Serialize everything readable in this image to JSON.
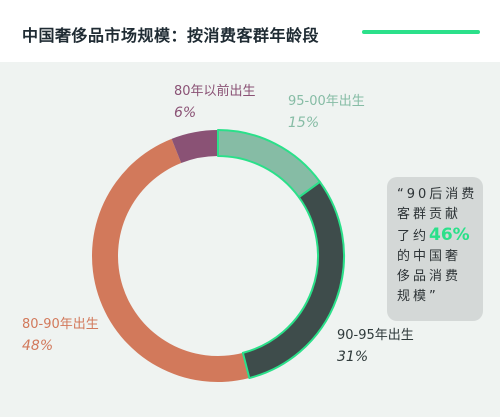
{
  "title": "中国奢侈品市场规模：按消费客群年龄段",
  "chart_data": {
    "type": "pie",
    "variant": "donut",
    "title": "中国奢侈品市场规模：按消费客群年龄段",
    "slices": [
      {
        "label": "95-00年出生",
        "value": 15,
        "display": "15%",
        "color": "#86bca5"
      },
      {
        "label": "90-95年出生",
        "value": 31,
        "display": "31%",
        "color": "#3e4c4b"
      },
      {
        "label": "80-90年出生",
        "value": 48,
        "display": "48%",
        "color": "#d2795b"
      },
      {
        "label": "80年以前出生",
        "value": 6,
        "display": "6%",
        "color": "#8a5275"
      }
    ],
    "highlight_color": "#2be08a"
  },
  "callout": {
    "line1": "“90后消费",
    "line2": "客群贡献",
    "line3_pre": "了约",
    "line3_value": "46%",
    "line4": "的中国奢",
    "line5": "侈品消费",
    "line6": "规模”"
  }
}
